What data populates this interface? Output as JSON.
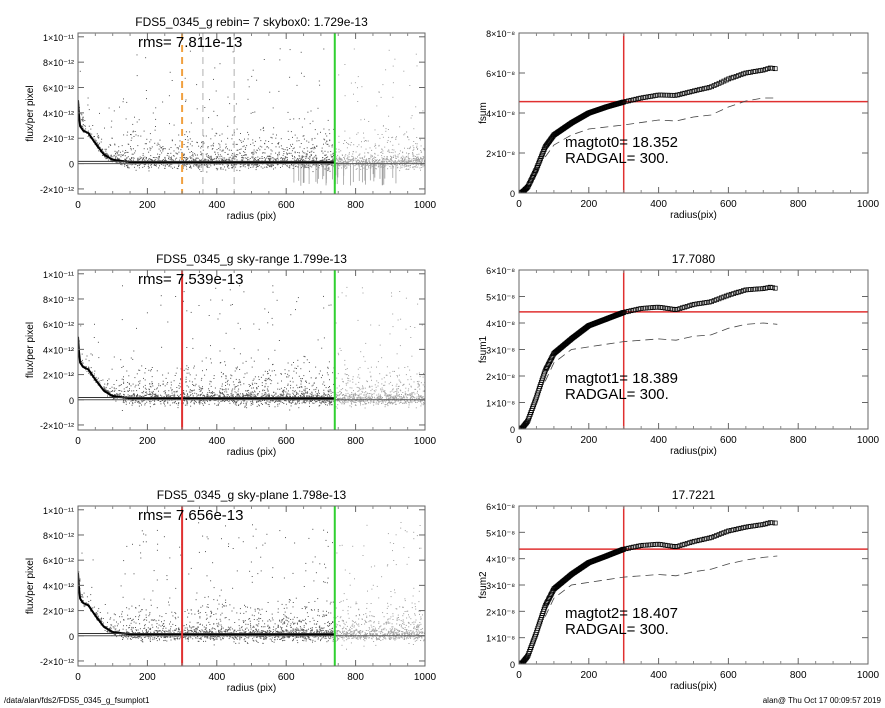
{
  "footer": {
    "path": "/data/alan/fds2/FDS5_0345_g_fsumplot1",
    "stamp": "alan@  Thu Oct 17 00:09:57 2019"
  },
  "colors": {
    "orange": "#f0a040",
    "red": "#e03030",
    "green": "#30d030",
    "scatter_inner": "#555555",
    "scatter_outer": "#a0a0a0",
    "grey_dash": "#b0b0b0"
  },
  "chart_data": [
    {
      "type": "scatter",
      "title": "FDS5_0345_g rebin= 7    skybox0:  1.729e-13",
      "annotation": "rms= 7.811e-13",
      "xlabel": "radius (pix)",
      "ylabel": "flux/per pixel",
      "xlim": [
        0,
        1000
      ],
      "ylim": [
        -2.4e-12,
        1.03e-11
      ],
      "xticks": [
        "0",
        "200",
        "400",
        "600",
        "800",
        "1000"
      ],
      "xtick_values": [
        0,
        200,
        400,
        600,
        800,
        1000
      ],
      "yticks": [
        "1×10⁻¹¹",
        "8×10⁻¹²",
        "6×10⁻¹²",
        "4×10⁻¹²",
        "2×10⁻¹²",
        "0",
        "-2×10⁻¹²"
      ],
      "ytick_values": [
        1e-11,
        8e-12,
        6e-12,
        4e-12,
        2e-12,
        0,
        -2e-12
      ],
      "sky": 1.729e-13,
      "rms": 7.811e-13,
      "profile": [
        [
          0,
          5e-12
        ],
        [
          5,
          3e-12
        ],
        [
          15,
          2.6e-12
        ],
        [
          30,
          2.4e-12
        ],
        [
          50,
          1.6e-12
        ],
        [
          75,
          7e-13
        ],
        [
          100,
          3e-13
        ],
        [
          150,
          1.2e-13
        ],
        [
          740,
          1e-13
        ]
      ],
      "vlines": [
        {
          "x": 300,
          "color": "orange",
          "dash": true
        },
        {
          "x": 360,
          "color": "grey_dash",
          "dash": true
        },
        {
          "x": 450,
          "color": "grey_dash",
          "dash": true
        },
        {
          "x": 740,
          "color": "green",
          "dash": false
        }
      ]
    },
    {
      "type": "line",
      "title": "",
      "annotation": [
        "magtot0=  18.352",
        "RADGAL=    300."
      ],
      "xlabel": "radius(pix)",
      "ylabel": "fsum",
      "xlim": [
        0,
        1000
      ],
      "ylim": [
        0,
        8e-08
      ],
      "xticks": [
        "0",
        "200",
        "400",
        "600",
        "800",
        "1000"
      ],
      "xtick_values": [
        0,
        200,
        400,
        600,
        800,
        1000
      ],
      "yticks": [
        "8×10⁻⁸",
        "6×10⁻⁸",
        "4×10⁻⁸",
        "2×10⁻⁸",
        "0"
      ],
      "ytick_values": [
        8e-08,
        6e-08,
        4e-08,
        2e-08,
        0
      ],
      "curve": [
        [
          0,
          0
        ],
        [
          10,
          5e-10
        ],
        [
          25,
          3e-09
        ],
        [
          50,
          1.2e-08
        ],
        [
          75,
          2.3e-08
        ],
        [
          100,
          2.9e-08
        ],
        [
          150,
          3.5e-08
        ],
        [
          200,
          4e-08
        ],
        [
          250,
          4.3e-08
        ],
        [
          300,
          4.55e-08
        ],
        [
          350,
          4.75e-08
        ],
        [
          400,
          4.9e-08
        ],
        [
          450,
          4.88e-08
        ],
        [
          500,
          5.1e-08
        ],
        [
          550,
          5.3e-08
        ],
        [
          600,
          5.7e-08
        ],
        [
          650,
          6e-08
        ],
        [
          700,
          6.15e-08
        ],
        [
          720,
          6.25e-08
        ],
        [
          740,
          6.2e-08
        ]
      ],
      "dashed": [
        [
          75,
          1.8e-08
        ],
        [
          100,
          2.4e-08
        ],
        [
          150,
          2.9e-08
        ],
        [
          200,
          3.2e-08
        ],
        [
          300,
          3.4e-08
        ],
        [
          400,
          3.65e-08
        ],
        [
          450,
          3.6e-08
        ],
        [
          500,
          3.8e-08
        ],
        [
          550,
          3.9e-08
        ],
        [
          600,
          4.3e-08
        ],
        [
          650,
          4.6e-08
        ],
        [
          700,
          4.75e-08
        ],
        [
          740,
          4.75e-08
        ]
      ],
      "hline": 4.57e-08,
      "vline": 300
    },
    {
      "type": "scatter",
      "title": "FDS5_0345_g sky-range  1.799e-13",
      "annotation": "rms= 7.539e-13",
      "xlabel": "radius (pix)",
      "ylabel": "flux/per pixel",
      "xlim": [
        0,
        1000
      ],
      "ylim": [
        -2.4e-12,
        1.03e-11
      ],
      "xticks": [
        "0",
        "200",
        "400",
        "600",
        "800",
        "1000"
      ],
      "xtick_values": [
        0,
        200,
        400,
        600,
        800,
        1000
      ],
      "yticks": [
        "1×10⁻¹¹",
        "8×10⁻¹²",
        "6×10⁻¹²",
        "4×10⁻¹²",
        "2×10⁻¹²",
        "0",
        "-2×10⁻¹²"
      ],
      "ytick_values": [
        1e-11,
        8e-12,
        6e-12,
        4e-12,
        2e-12,
        0,
        -2e-12
      ],
      "sky": 1.799e-13,
      "rms": 7.539e-13,
      "profile": [
        [
          0,
          5e-12
        ],
        [
          5,
          3e-12
        ],
        [
          15,
          2.6e-12
        ],
        [
          30,
          2.4e-12
        ],
        [
          50,
          1.6e-12
        ],
        [
          75,
          7e-13
        ],
        [
          100,
          3e-13
        ],
        [
          150,
          1.2e-13
        ],
        [
          740,
          1e-13
        ]
      ],
      "vlines": [
        {
          "x": 300,
          "color": "red",
          "dash": false
        },
        {
          "x": 740,
          "color": "green",
          "dash": false
        }
      ]
    },
    {
      "type": "line",
      "title": "17.7080",
      "annotation": [
        "magtot1=  18.389",
        "RADGAL=    300."
      ],
      "xlabel": "radius(pix)",
      "ylabel": "fsum1",
      "xlim": [
        0,
        1000
      ],
      "ylim": [
        0,
        6e-08
      ],
      "xticks": [
        "0",
        "200",
        "400",
        "600",
        "800",
        "1000"
      ],
      "xtick_values": [
        0,
        200,
        400,
        600,
        800,
        1000
      ],
      "yticks": [
        "6×10⁻⁸",
        "5×10⁻⁸",
        "4×10⁻⁸",
        "3×10⁻⁸",
        "2×10⁻⁸",
        "1×10⁻⁸",
        "0"
      ],
      "ytick_values": [
        6e-08,
        5e-08,
        4e-08,
        3e-08,
        2e-08,
        1e-08,
        0
      ],
      "curve": [
        [
          0,
          0
        ],
        [
          10,
          5e-10
        ],
        [
          25,
          3e-09
        ],
        [
          50,
          1.2e-08
        ],
        [
          75,
          2.2e-08
        ],
        [
          100,
          2.85e-08
        ],
        [
          150,
          3.4e-08
        ],
        [
          200,
          3.9e-08
        ],
        [
          250,
          4.15e-08
        ],
        [
          300,
          4.4e-08
        ],
        [
          350,
          4.55e-08
        ],
        [
          400,
          4.6e-08
        ],
        [
          450,
          4.5e-08
        ],
        [
          500,
          4.7e-08
        ],
        [
          550,
          4.8e-08
        ],
        [
          600,
          5.05e-08
        ],
        [
          650,
          5.25e-08
        ],
        [
          700,
          5.3e-08
        ],
        [
          720,
          5.35e-08
        ],
        [
          740,
          5.3e-08
        ]
      ],
      "dashed": [
        [
          75,
          1.8e-08
        ],
        [
          100,
          2.5e-08
        ],
        [
          150,
          3e-08
        ],
        [
          200,
          3.1e-08
        ],
        [
          300,
          3.3e-08
        ],
        [
          400,
          3.4e-08
        ],
        [
          450,
          3.35e-08
        ],
        [
          500,
          3.5e-08
        ],
        [
          550,
          3.55e-08
        ],
        [
          600,
          3.8e-08
        ],
        [
          650,
          3.95e-08
        ],
        [
          700,
          4e-08
        ],
        [
          740,
          3.95e-08
        ]
      ],
      "hline": 4.42e-08,
      "vline": 300
    },
    {
      "type": "scatter",
      "title": "FDS5_0345_g sky-plane  1.798e-13",
      "annotation": "rms= 7.656e-13",
      "xlabel": "radius (pix)",
      "ylabel": "flux/per pixel",
      "xlim": [
        0,
        1000
      ],
      "ylim": [
        -2.4e-12,
        1.03e-11
      ],
      "xticks": [
        "0",
        "200",
        "400",
        "600",
        "800",
        "1000"
      ],
      "xtick_values": [
        0,
        200,
        400,
        600,
        800,
        1000
      ],
      "yticks": [
        "1×10⁻¹¹",
        "8×10⁻¹²",
        "6×10⁻¹²",
        "4×10⁻¹²",
        "2×10⁻¹²",
        "0",
        "-2×10⁻¹²"
      ],
      "ytick_values": [
        1e-11,
        8e-12,
        6e-12,
        4e-12,
        2e-12,
        0,
        -2e-12
      ],
      "sky": 1.798e-13,
      "rms": 7.656e-13,
      "profile": [
        [
          0,
          5e-12
        ],
        [
          5,
          3e-12
        ],
        [
          15,
          2.6e-12
        ],
        [
          30,
          2.4e-12
        ],
        [
          50,
          1.6e-12
        ],
        [
          75,
          7e-13
        ],
        [
          100,
          3e-13
        ],
        [
          150,
          1.2e-13
        ],
        [
          740,
          1e-13
        ]
      ],
      "vlines": [
        {
          "x": 300,
          "color": "red",
          "dash": false
        },
        {
          "x": 740,
          "color": "green",
          "dash": false
        }
      ]
    },
    {
      "type": "line",
      "title": "17.7221",
      "annotation": [
        "magtot2=  18.407",
        "RADGAL=    300."
      ],
      "xlabel": "radius(pix)",
      "ylabel": "fsum2",
      "xlim": [
        0,
        1000
      ],
      "ylim": [
        0,
        6e-08
      ],
      "xticks": [
        "0",
        "200",
        "400",
        "600",
        "800",
        "1000"
      ],
      "xtick_values": [
        0,
        200,
        400,
        600,
        800,
        1000
      ],
      "yticks": [
        "6×10⁻⁸",
        "5×10⁻⁸",
        "4×10⁻⁸",
        "3×10⁻⁸",
        "2×10⁻⁸",
        "1×10⁻⁸",
        "0"
      ],
      "ytick_values": [
        6e-08,
        5e-08,
        4e-08,
        3e-08,
        2e-08,
        1e-08,
        0
      ],
      "curve": [
        [
          0,
          0
        ],
        [
          10,
          5e-10
        ],
        [
          25,
          3e-09
        ],
        [
          50,
          1.2e-08
        ],
        [
          75,
          2.2e-08
        ],
        [
          100,
          2.85e-08
        ],
        [
          150,
          3.4e-08
        ],
        [
          200,
          3.85e-08
        ],
        [
          250,
          4.1e-08
        ],
        [
          300,
          4.36e-08
        ],
        [
          350,
          4.5e-08
        ],
        [
          400,
          4.55e-08
        ],
        [
          450,
          4.45e-08
        ],
        [
          500,
          4.65e-08
        ],
        [
          550,
          4.8e-08
        ],
        [
          600,
          5.05e-08
        ],
        [
          650,
          5.2e-08
        ],
        [
          700,
          5.3e-08
        ],
        [
          720,
          5.37e-08
        ],
        [
          740,
          5.35e-08
        ]
      ],
      "dashed": [
        [
          75,
          1.8e-08
        ],
        [
          100,
          2.5e-08
        ],
        [
          150,
          3e-08
        ],
        [
          200,
          3.1e-08
        ],
        [
          300,
          3.3e-08
        ],
        [
          400,
          3.4e-08
        ],
        [
          450,
          3.35e-08
        ],
        [
          500,
          3.5e-08
        ],
        [
          550,
          3.6e-08
        ],
        [
          600,
          3.8e-08
        ],
        [
          650,
          3.95e-08
        ],
        [
          700,
          4.05e-08
        ],
        [
          740,
          4.1e-08
        ]
      ],
      "hline": 4.36e-08,
      "vline": 300
    }
  ]
}
